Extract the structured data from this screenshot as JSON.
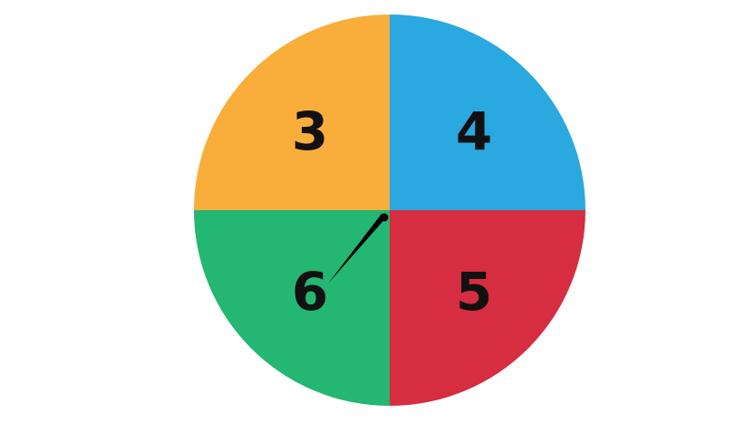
{
  "spinner": {
    "sectors": [
      {
        "label": "3",
        "color": "#F9AE3B"
      },
      {
        "label": "4",
        "color": "#2AA8E0"
      },
      {
        "label": "5",
        "color": "#D62D40"
      },
      {
        "label": "6",
        "color": "#24B673"
      }
    ],
    "pointer_color": "#000000"
  }
}
